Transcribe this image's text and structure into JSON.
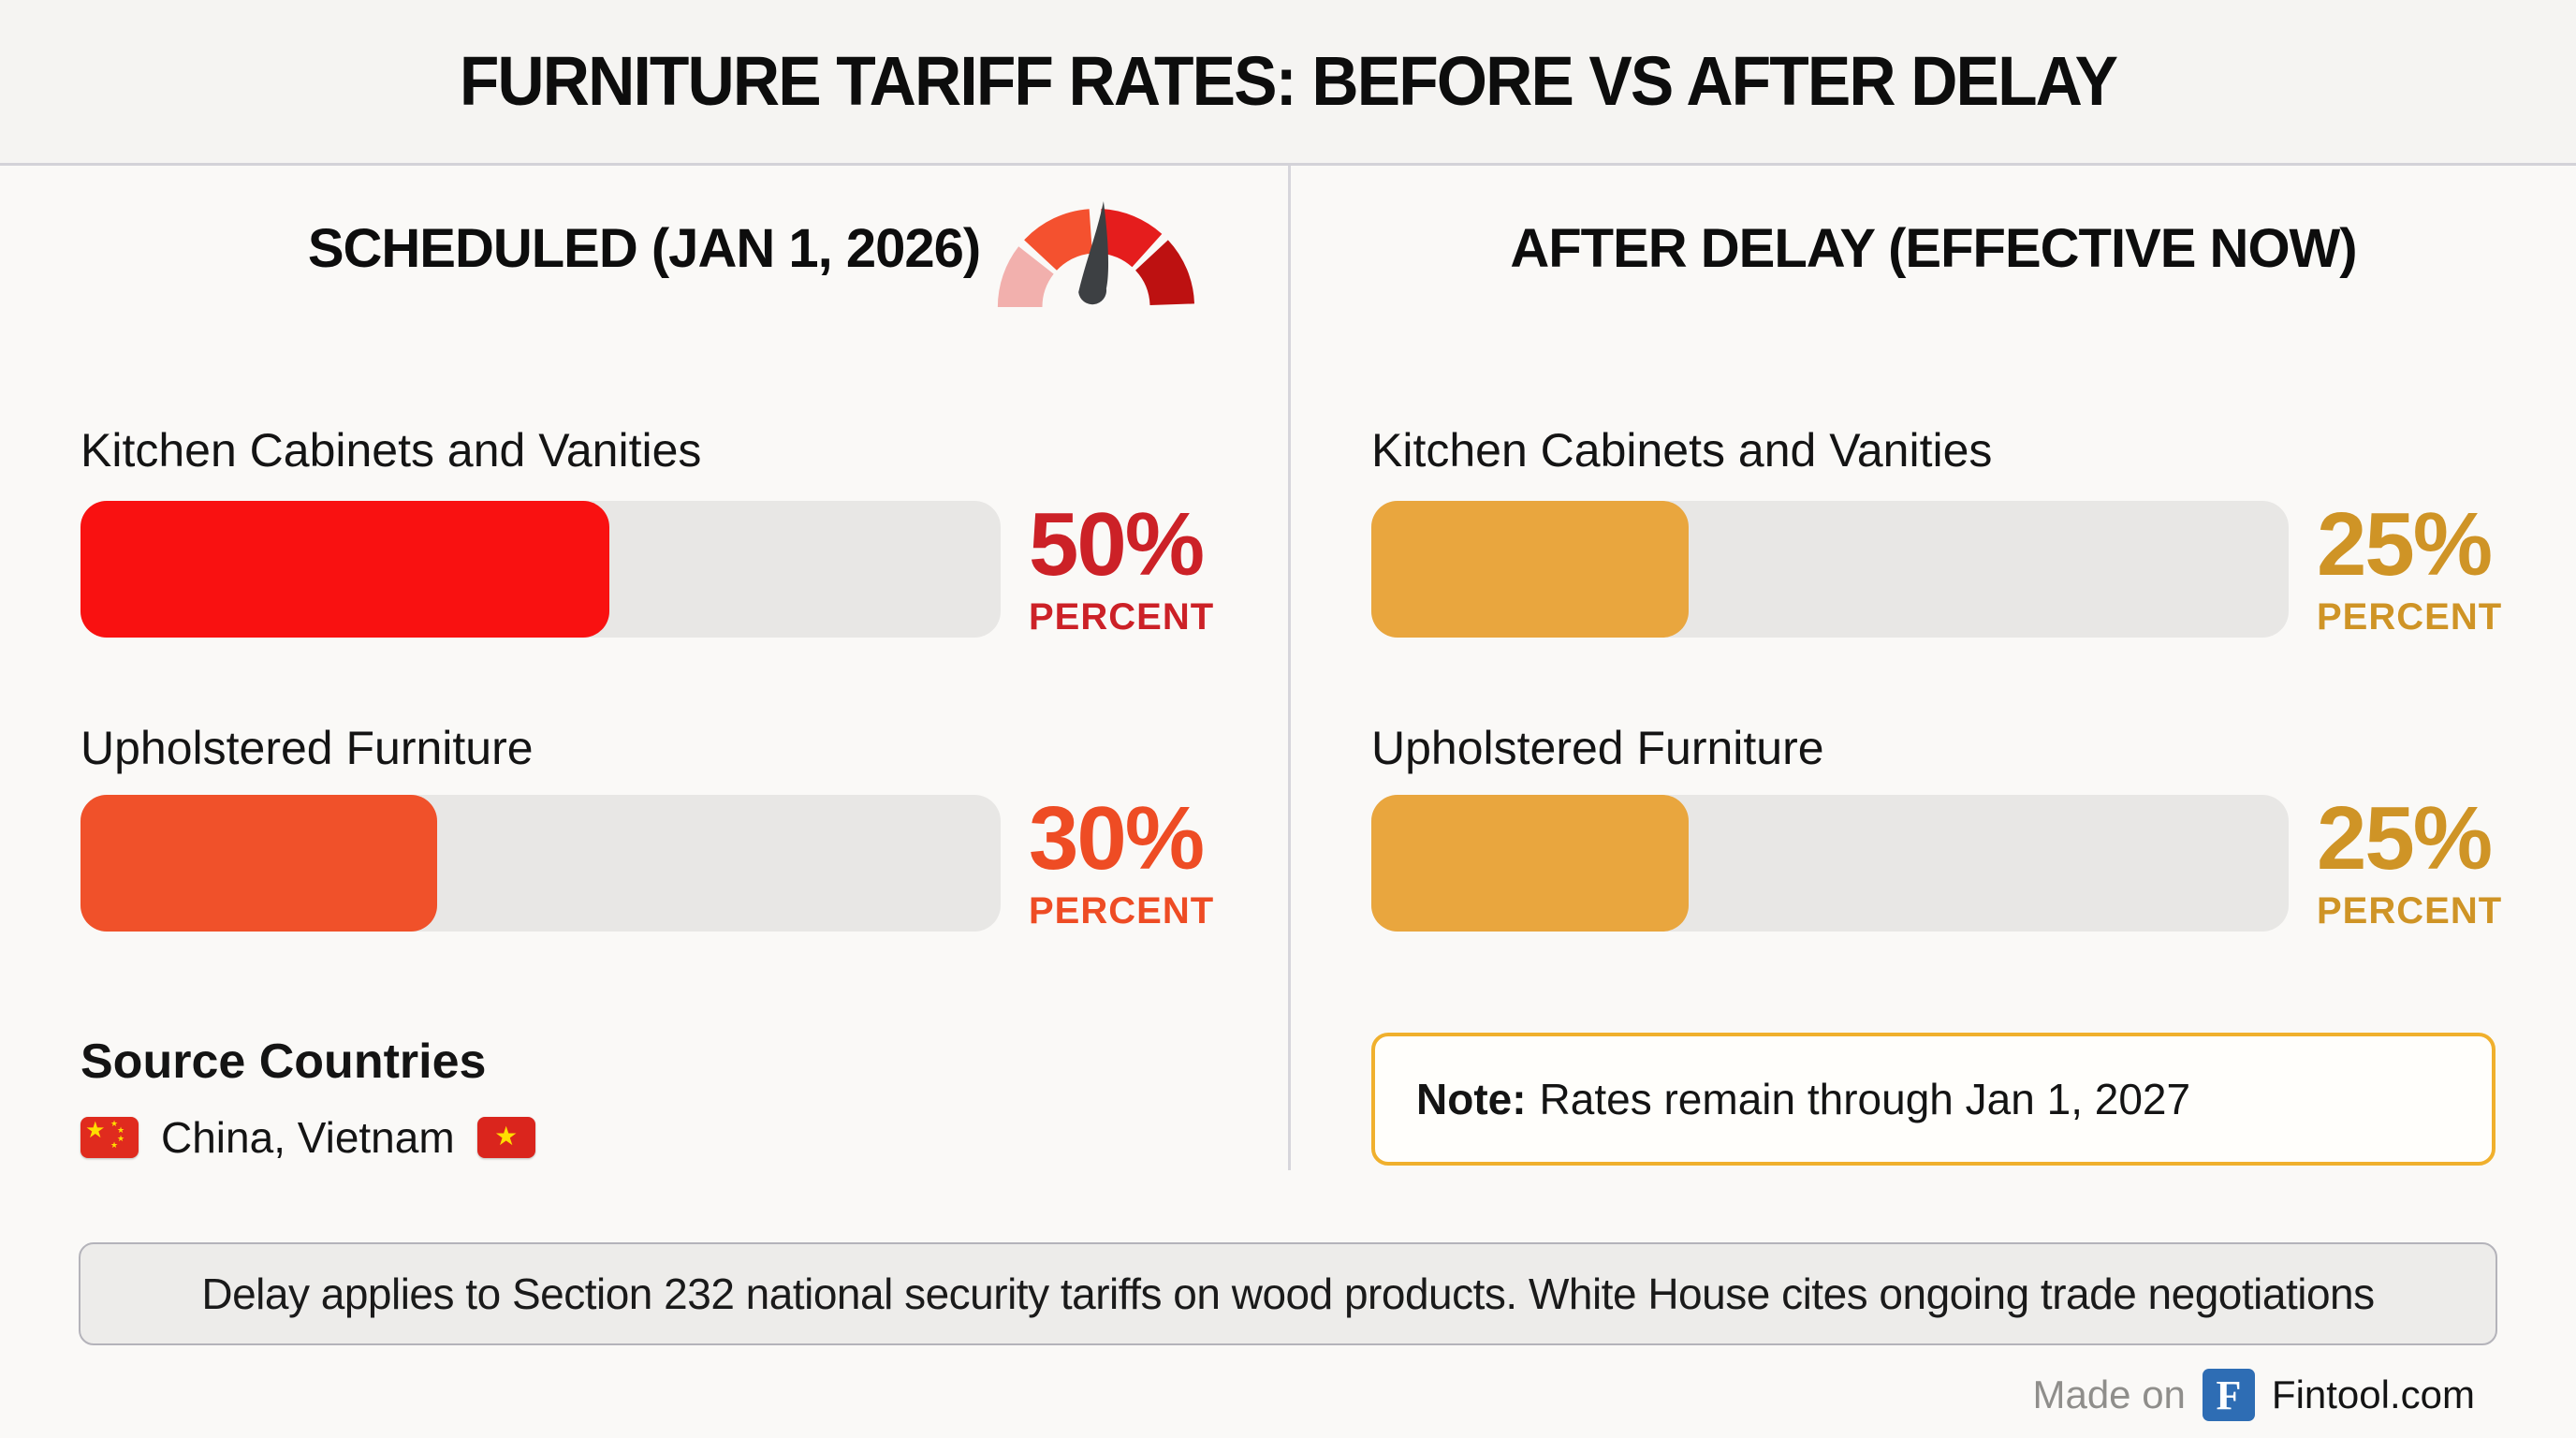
{
  "title": "FURNITURE TARIFF RATES: BEFORE VS AFTER DELAY",
  "left_panel": {
    "header": "SCHEDULED (JAN 1, 2026)",
    "rows": [
      {
        "label": "Kitchen Cabinets and Vanities",
        "value": "50%",
        "unit": "PERCENT",
        "percent": 50,
        "fill_pct": 57.5,
        "bar_color": "#f91111",
        "value_color": "#cc2127"
      },
      {
        "label": "Upholstered Furniture",
        "value": "30%",
        "unit": "PERCENT",
        "percent": 30,
        "fill_pct": 38.8,
        "bar_color": "#f0512a",
        "value_color": "#ee4c24"
      }
    ],
    "source": {
      "heading": "Source Countries",
      "countries": "China, Vietnam",
      "flags": [
        "china-flag",
        "vietnam-flag"
      ]
    }
  },
  "right_panel": {
    "header": "AFTER DELAY (EFFECTIVE NOW)",
    "rows": [
      {
        "label": "Kitchen Cabinets and Vanities",
        "value": "25%",
        "unit": "PERCENT",
        "percent": 25,
        "fill_pct": 34.6,
        "bar_color": "#e9a63e",
        "value_color": "#cf9426"
      },
      {
        "label": "Upholstered Furniture",
        "value": "25%",
        "unit": "PERCENT",
        "percent": 25,
        "fill_pct": 34.6,
        "bar_color": "#e9a63e",
        "value_color": "#cf9426"
      }
    ],
    "note": {
      "prefix": "Note:",
      "text": "Rates remain through Jan 1, 2027",
      "border_color": "#f0b02d"
    }
  },
  "gauge": {
    "icon": "speedometer-gauge-icon",
    "segment_colors": [
      "#f2b0ad",
      "#f4512f",
      "#e51d1d",
      "#bd1111"
    ],
    "needle_color": "#3d4043"
  },
  "footnote": "Delay applies to Section 232 national security tariffs on wood products. White House cites ongoing trade negotiations",
  "footer": {
    "made_on": "Made on",
    "logo_letter": "F",
    "brand": "Fintool.com",
    "logo_color": "#2e6db4"
  },
  "flags": {
    "china_star": "★",
    "vietnam_star": "★"
  },
  "chart_data": {
    "type": "bar",
    "title": "FURNITURE TARIFF RATES: BEFORE VS AFTER DELAY",
    "categories": [
      "Kitchen Cabinets and Vanities",
      "Upholstered Furniture"
    ],
    "series": [
      {
        "name": "SCHEDULED (JAN 1, 2026)",
        "values": [
          50,
          30
        ],
        "colors": [
          "#f91111",
          "#f0512a"
        ]
      },
      {
        "name": "AFTER DELAY (EFFECTIVE NOW)",
        "values": [
          25,
          25
        ],
        "colors": [
          "#e9a63e",
          "#e9a63e"
        ]
      }
    ],
    "unit": "percent",
    "value_labels": [
      [
        "50%",
        "30%"
      ],
      [
        "25%",
        "25%"
      ]
    ],
    "annotations": [
      "Note: Rates remain through Jan 1, 2027",
      "Source Countries: China, Vietnam",
      "Delay applies to Section 232 national security tariffs on wood products. White House cites ongoing trade negotiations"
    ],
    "grid": false,
    "legend_position": "panel-headers"
  }
}
